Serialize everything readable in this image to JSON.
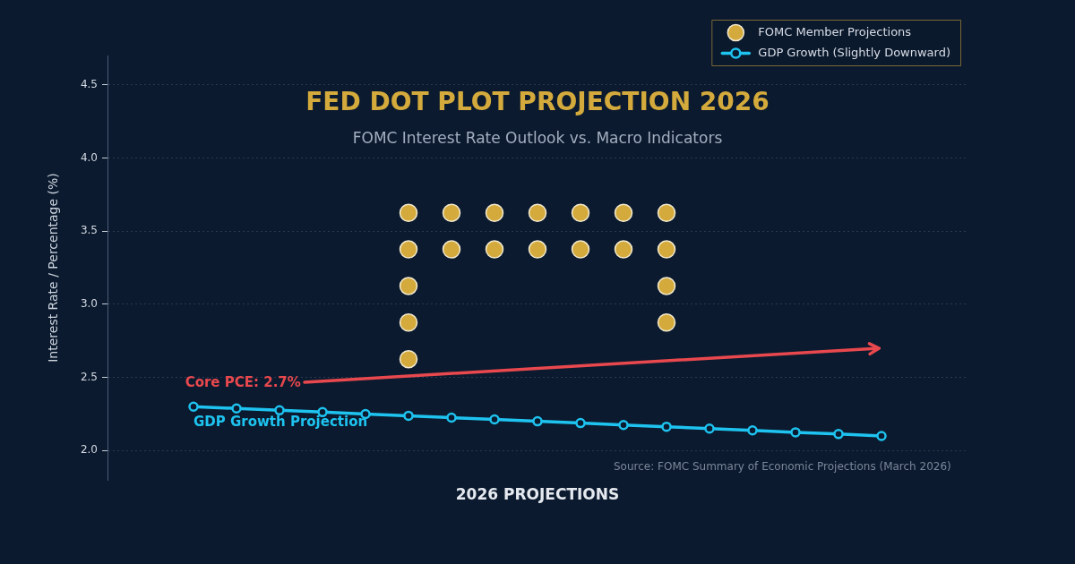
{
  "chart_data": {
    "type": "scatter",
    "title": "FED DOT PLOT PROJECTION 2026",
    "subtitle": "FOMC Interest Rate Outlook vs. Macro Indicators",
    "xlabel": "2026 PROJECTIONS",
    "ylabel": "Interest Rate / Percentage (%)",
    "categories": [
      null,
      null,
      null,
      null,
      null,
      null,
      null,
      null,
      null,
      null,
      null,
      null,
      null,
      null,
      null,
      null,
      null,
      null,
      null,
      null,
      null
    ],
    "series": [
      {
        "name": "FOMC Member Projections",
        "color": "#d4aa3c",
        "values": [
          null,
          null,
          null,
          null,
          null,
          null,
          null,
          3.625,
          3.625,
          3.625,
          3.625,
          3.625,
          3.625,
          3.625,
          null,
          null,
          null,
          null,
          null,
          null,
          null
        ]
      },
      {
        "color": "#d4aa3c",
        "values": [
          null,
          null,
          null,
          null,
          null,
          null,
          null,
          3.375,
          3.375,
          3.375,
          3.375,
          3.375,
          3.375,
          3.375,
          null,
          null,
          null,
          null,
          null,
          null,
          null
        ]
      },
      {
        "color": "#d4aa3c",
        "values": [
          null,
          null,
          null,
          null,
          null,
          null,
          null,
          3.125,
          null,
          null,
          null,
          null,
          null,
          3.125,
          null,
          null,
          null,
          null,
          null,
          null,
          null
        ]
      },
      {
        "color": "#d4aa3c",
        "values": [
          null,
          null,
          null,
          null,
          null,
          null,
          null,
          2.875,
          null,
          null,
          null,
          null,
          null,
          2.875,
          null,
          null,
          null,
          null,
          null,
          null,
          null
        ]
      },
      {
        "color": "#d4aa3c",
        "values": [
          null,
          null,
          null,
          null,
          null,
          null,
          null,
          2.625,
          null,
          null,
          null,
          null,
          null,
          null,
          null,
          null,
          null,
          null,
          null,
          null,
          null
        ]
      },
      {
        "name": "GDP Growth (Slightly Downward)",
        "type": "line",
        "color": "#1ec3f0",
        "values": [
          null,
          null,
          2.3,
          2.288,
          2.275,
          2.263,
          2.25,
          2.238,
          2.225,
          2.213,
          2.2,
          2.188,
          2.175,
          2.163,
          2.15,
          2.138,
          2.125,
          2.113,
          2.1,
          null,
          null
        ]
      }
    ],
    "ylim": [
      1.8,
      4.7
    ],
    "yticks": [
      {
        "value": 2,
        "label": "2.0"
      },
      2.5,
      {
        "value": 3,
        "label": "3.0"
      },
      3.5,
      {
        "value": 4,
        "label": "4.0"
      },
      4.5
    ],
    "grid": "y",
    "legend": "top right",
    "tick_labels": "y",
    "marker": "circle",
    "annotations": [
      "Core PCE: 2.7%",
      "GDP Growth Projection",
      "Source: FOMC Summary of Economic Projections (March 2026)"
    ]
  }
}
